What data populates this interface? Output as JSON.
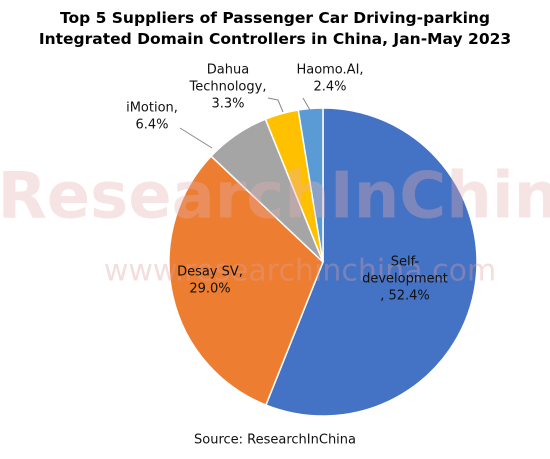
{
  "chart_data": {
    "type": "pie",
    "title": "Top 5 Suppliers of Passenger Car Driving-parking Integrated Domain Controllers in China, Jan-May 2023",
    "categories": [
      "Self-development",
      "Desay SV",
      "iMotion",
      "Dahua Technology",
      "Haomo.AI"
    ],
    "values": [
      52.4,
      29.0,
      6.4,
      3.3,
      2.4
    ],
    "value_labels": [
      [
        "Self-",
        "development",
        ", 52.4%"
      ],
      [
        "Desay SV,",
        "29.0%"
      ],
      [
        "iMotion,",
        "6.4%"
      ],
      [
        "Dahua",
        "Technology,",
        "3.3%"
      ],
      [
        "Haomo.AI,",
        "2.4%"
      ]
    ],
    "colors": [
      "#4472c4",
      "#ed7d31",
      "#a5a5a5",
      "#ffc000",
      "#5b9bd5"
    ],
    "watermark": [
      "ResearchInChina",
      "www.researchinchina.com"
    ],
    "source": "Source: ResearchInChina"
  }
}
